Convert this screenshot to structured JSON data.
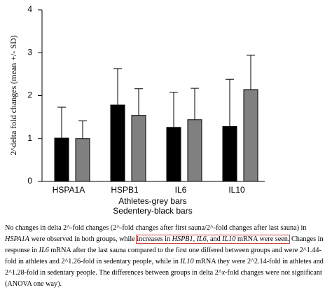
{
  "chart_data": {
    "type": "bar",
    "ylabel": "2^delta fold changes (mean +/- SD)",
    "categories": [
      "HSPA1A",
      "HSPB1",
      "IL6",
      "IL10"
    ],
    "series": [
      {
        "name": "Athletes-grey bars",
        "color": "#808080",
        "values": [
          1.0,
          1.54,
          1.44,
          2.14
        ],
        "errors": [
          0.41,
          0.62,
          0.73,
          0.8
        ]
      },
      {
        "name": "Sedentery-black bars",
        "color": "#000000",
        "values": [
          1.01,
          1.78,
          1.26,
          1.28
        ],
        "errors": [
          0.72,
          0.85,
          0.82,
          1.1
        ]
      }
    ],
    "ylim": [
      0,
      4
    ],
    "yticks": [
      0,
      1,
      2,
      3,
      4
    ],
    "grid": false
  },
  "caption": [
    {
      "text": "No changes in delta 2^-fold changes (2^-fold changes after first sauna/2^-fold changes after last sauna) in "
    },
    {
      "text": "HSPA1A",
      "italic": true
    },
    {
      "text": " were observed in both groups, while "
    },
    {
      "text": "increases in ",
      "boxed": true
    },
    {
      "text": "HSPB1, IL6,",
      "italic": true,
      "boxed": true
    },
    {
      "text": " and ",
      "boxed": true
    },
    {
      "text": "IL10",
      "italic": true,
      "boxed": true
    },
    {
      "text": " mRNA were seen.",
      "boxed": true
    },
    {
      "text": " Changes in response in "
    },
    {
      "text": "IL6",
      "italic": true
    },
    {
      "text": " mRNA after the last sauna compared to the first one differed between groups and were 2^1.44-fold in athletes and 2^1.26-fold in sedentary people, while in "
    },
    {
      "text": "IL10",
      "italic": true
    },
    {
      "text": " mRNA they were 2^2.14-fold in athletes and 2^1.28-fold in sedentary people. The differences between groups in delta 2^"
    },
    {
      "text": "x",
      "italic": true
    },
    {
      "text": "-fold changes were not significant (ANOVA one way)."
    }
  ]
}
